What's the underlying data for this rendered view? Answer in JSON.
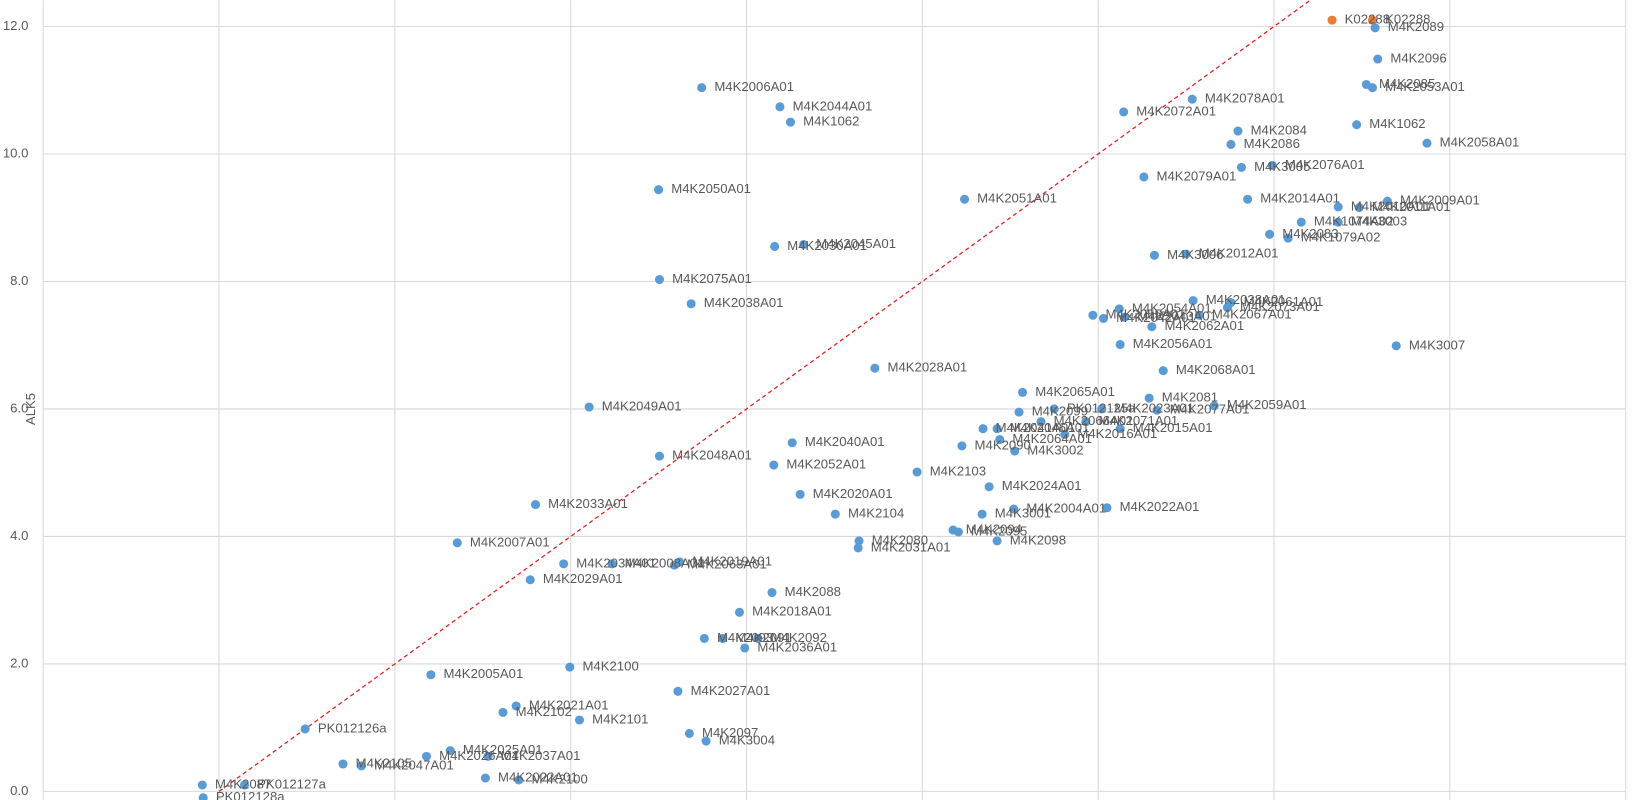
{
  "chart_data": {
    "type": "scatter",
    "y_label": "ALK5",
    "color": "#5b9bd5",
    "xlim": [
      -2,
      16
    ],
    "xticks": [
      -2,
      0,
      2,
      4,
      6,
      8,
      10,
      12,
      14,
      16
    ],
    "ylim": [
      0,
      12
    ],
    "yticks": [
      {
        "value": 0,
        "label": "0.0"
      },
      {
        "value": 2,
        "label": "2.0"
      },
      {
        "value": 4,
        "label": "4.0"
      },
      {
        "value": 6,
        "label": "6.0"
      },
      {
        "value": 8,
        "label": "8.0"
      },
      {
        "value": 10,
        "label": "10.0"
      },
      {
        "value": 12,
        "label": "12.0"
      }
    ],
    "grid": true,
    "reference_line": {
      "color": "#e02020",
      "dashed": true
    },
    "points": [
      {
        "x": 5.49,
        "y": 11.04,
        "label": "M4K2006A01"
      },
      {
        "x": 6.38,
        "y": 10.74,
        "label": "M4K2044A01"
      },
      {
        "x": 6.5,
        "y": 10.5,
        "label": "M4K1062"
      },
      {
        "x": 5.0,
        "y": 9.44,
        "label": "M4K2050A01"
      },
      {
        "x": 8.48,
        "y": 9.29,
        "label": "M4K2051A01"
      },
      {
        "x": 6.32,
        "y": 8.55,
        "label": "M4K2030A01"
      },
      {
        "x": 6.65,
        "y": 8.58,
        "label": "M4K2045A01"
      },
      {
        "x": 5.01,
        "y": 8.03,
        "label": "M4K2075A01"
      },
      {
        "x": 5.37,
        "y": 7.65,
        "label": "M4K2038A01"
      },
      {
        "x": 7.46,
        "y": 6.64,
        "label": "M4K2028A01"
      },
      {
        "x": 4.21,
        "y": 6.03,
        "label": "M4K2049A01"
      },
      {
        "x": 6.52,
        "y": 5.47,
        "label": "M4K2040A01"
      },
      {
        "x": 5.01,
        "y": 5.26,
        "label": "M4K2048A01"
      },
      {
        "x": 6.31,
        "y": 5.12,
        "label": "M4K2052A01"
      },
      {
        "x": 7.94,
        "y": 5.01,
        "label": "M4K2103"
      },
      {
        "x": 6.61,
        "y": 4.66,
        "label": "M4K2020A01"
      },
      {
        "x": 3.6,
        "y": 4.5,
        "label": "M4K2033A01"
      },
      {
        "x": 7.01,
        "y": 4.35,
        "label": "M4K2104"
      },
      {
        "x": 2.71,
        "y": 3.9,
        "label": "M4K2007A01"
      },
      {
        "x": 3.92,
        "y": 3.57,
        "label": "M4K2034A01"
      },
      {
        "x": 4.47,
        "y": 3.57,
        "label": "M4K2008A01"
      },
      {
        "x": 5.24,
        "y": 3.6,
        "label": "M4K2019A01"
      },
      {
        "x": 5.18,
        "y": 3.55,
        "label": "M4K2063A01"
      },
      {
        "x": 3.54,
        "y": 3.32,
        "label": "M4K2029A01"
      },
      {
        "x": 6.29,
        "y": 3.12,
        "label": "M4K2088"
      },
      {
        "x": 5.92,
        "y": 2.81,
        "label": "M4K2018A01"
      },
      {
        "x": 5.52,
        "y": 2.4,
        "label": "M4K2093"
      },
      {
        "x": 5.73,
        "y": 2.4,
        "label": "M4K2091"
      },
      {
        "x": 6.13,
        "y": 2.4,
        "label": "M4K2092"
      },
      {
        "x": 5.98,
        "y": 2.25,
        "label": "M4K2036A01"
      },
      {
        "x": 2.41,
        "y": 1.83,
        "label": "M4K2005A01"
      },
      {
        "x": 3.99,
        "y": 1.95,
        "label": "M4K2100"
      },
      {
        "x": 5.22,
        "y": 1.57,
        "label": "M4K2027A01"
      },
      {
        "x": 0.98,
        "y": 0.98,
        "label": "PK012126a"
      },
      {
        "x": 3.38,
        "y": 1.34,
        "label": "M4K2021A01"
      },
      {
        "x": 3.23,
        "y": 1.24,
        "label": "M4K2102"
      },
      {
        "x": 4.1,
        "y": 1.12,
        "label": "M4K2101"
      },
      {
        "x": 5.35,
        "y": 0.91,
        "label": "M4K2097"
      },
      {
        "x": 5.54,
        "y": 0.79,
        "label": "M4K3004"
      },
      {
        "x": 2.63,
        "y": 0.64,
        "label": "M4K2025A01"
      },
      {
        "x": 2.36,
        "y": 0.55,
        "label": "M4K2026A01"
      },
      {
        "x": 3.06,
        "y": 0.55,
        "label": "M4K2037A01"
      },
      {
        "x": 1.41,
        "y": 0.43,
        "label": "M4K2105"
      },
      {
        "x": 1.62,
        "y": 0.4,
        "label": "M4K2047A01"
      },
      {
        "x": 3.03,
        "y": 0.21,
        "label": "M4K2022A01"
      },
      {
        "x": 3.41,
        "y": 0.18,
        "label": "M4K2100"
      },
      {
        "x": -0.19,
        "y": 0.1,
        "label": "M4K2087"
      },
      {
        "x": 0.29,
        "y": 0.1,
        "label": "PK012127a"
      },
      {
        "x": -0.18,
        "y": -0.1,
        "label": "PK012128a"
      },
      {
        "x": 12.66,
        "y": 12.1,
        "label": "K02288",
        "color": "#ed7d31"
      },
      {
        "x": 13.12,
        "y": 12.1,
        "label": "K02288",
        "color": "#ed7d31"
      },
      {
        "x": 13.15,
        "y": 11.98,
        "label": "M4K2089"
      },
      {
        "x": 13.18,
        "y": 11.49,
        "label": "M4K2096"
      },
      {
        "x": 13.05,
        "y": 11.09,
        "label": "M4K2085"
      },
      {
        "x": 13.12,
        "y": 11.04,
        "label": "M4K2053A01"
      },
      {
        "x": 11.07,
        "y": 10.86,
        "label": "M4K2078A01"
      },
      {
        "x": 10.29,
        "y": 10.66,
        "label": "M4K2072A01"
      },
      {
        "x": 11.59,
        "y": 10.36,
        "label": "M4K2084"
      },
      {
        "x": 12.94,
        "y": 10.46,
        "label": "M4K1062"
      },
      {
        "x": 13.74,
        "y": 10.17,
        "label": "M4K2058A01"
      },
      {
        "x": 11.51,
        "y": 10.15,
        "label": "M4K2086"
      },
      {
        "x": 11.63,
        "y": 9.79,
        "label": "M4K3005"
      },
      {
        "x": 11.98,
        "y": 9.82,
        "label": "M4K2076A01"
      },
      {
        "x": 10.52,
        "y": 9.64,
        "label": "M4K2079A01"
      },
      {
        "x": 11.7,
        "y": 9.29,
        "label": "M4K2014A01"
      },
      {
        "x": 12.73,
        "y": 9.17,
        "label": "M4K2010A01"
      },
      {
        "x": 13.29,
        "y": 9.26,
        "label": "M4K2009A01"
      },
      {
        "x": 12.97,
        "y": 9.16,
        "label": "M4K2011A01"
      },
      {
        "x": 12.31,
        "y": 8.93,
        "label": "M4K1074A02"
      },
      {
        "x": 12.73,
        "y": 8.93,
        "label": "M4K3003"
      },
      {
        "x": 11.95,
        "y": 8.74,
        "label": "M4K2083"
      },
      {
        "x": 12.16,
        "y": 8.68,
        "label": "M4K1079A02"
      },
      {
        "x": 10.64,
        "y": 8.41,
        "label": "M4K3006"
      },
      {
        "x": 11.0,
        "y": 8.43,
        "label": "M4K2012A01"
      },
      {
        "x": 11.08,
        "y": 7.7,
        "label": "M4K2038A01"
      },
      {
        "x": 11.47,
        "y": 7.59,
        "label": "M4K2073A01"
      },
      {
        "x": 11.51,
        "y": 7.67,
        "label": "M4K2061A01"
      },
      {
        "x": 10.24,
        "y": 7.57,
        "label": "M4K2054A01"
      },
      {
        "x": 9.94,
        "y": 7.47,
        "label": "M4K2055A01"
      },
      {
        "x": 10.06,
        "y": 7.42,
        "label": "M4K2042A01"
      },
      {
        "x": 10.3,
        "y": 7.44,
        "label": "M4K2043A01"
      },
      {
        "x": 11.15,
        "y": 7.47,
        "label": "M4K2067A01"
      },
      {
        "x": 10.61,
        "y": 7.29,
        "label": "M4K2062A01"
      },
      {
        "x": 10.25,
        "y": 7.01,
        "label": "M4K2056A01"
      },
      {
        "x": 10.74,
        "y": 6.6,
        "label": "M4K2068A01"
      },
      {
        "x": 13.39,
        "y": 6.99,
        "label": "M4K3007"
      },
      {
        "x": 9.14,
        "y": 6.26,
        "label": "M4K2065A01"
      },
      {
        "x": 10.58,
        "y": 6.17,
        "label": "M4K2081"
      },
      {
        "x": 9.1,
        "y": 5.95,
        "label": "M4K2099"
      },
      {
        "x": 9.5,
        "y": 6.0,
        "label": "PK012125a"
      },
      {
        "x": 10.04,
        "y": 6.0,
        "label": "M4K2023A01"
      },
      {
        "x": 10.67,
        "y": 5.98,
        "label": "M4K2077A01"
      },
      {
        "x": 11.32,
        "y": 6.05,
        "label": "M4K2059A01"
      },
      {
        "x": 9.35,
        "y": 5.8,
        "label": "M4K2066A01"
      },
      {
        "x": 9.86,
        "y": 5.8,
        "label": "M4K2071A01"
      },
      {
        "x": 10.25,
        "y": 5.69,
        "label": "M4K2015A01"
      },
      {
        "x": 8.69,
        "y": 5.69,
        "label": "M4K2041A01"
      },
      {
        "x": 8.85,
        "y": 5.69,
        "label": "M4K2046A01"
      },
      {
        "x": 8.88,
        "y": 5.52,
        "label": "M4K2064A01"
      },
      {
        "x": 9.62,
        "y": 5.6,
        "label": "M4K2016A01"
      },
      {
        "x": 8.45,
        "y": 5.42,
        "label": "M4K2090"
      },
      {
        "x": 9.05,
        "y": 5.34,
        "label": "M4K3002"
      },
      {
        "x": 8.76,
        "y": 4.78,
        "label": "M4K2024A01"
      },
      {
        "x": 9.04,
        "y": 4.43,
        "label": "M4K2004A01"
      },
      {
        "x": 10.1,
        "y": 4.45,
        "label": "M4K2022A01"
      },
      {
        "x": 8.68,
        "y": 4.35,
        "label": "M4K3001"
      },
      {
        "x": 8.35,
        "y": 4.1,
        "label": "M4K2094"
      },
      {
        "x": 8.41,
        "y": 4.07,
        "label": "M4K2095"
      },
      {
        "x": 8.85,
        "y": 3.93,
        "label": "M4K2098"
      },
      {
        "x": 7.28,
        "y": 3.93,
        "label": "M4K2080"
      },
      {
        "x": 7.27,
        "y": 3.82,
        "label": "M4K2031A01"
      }
    ]
  }
}
